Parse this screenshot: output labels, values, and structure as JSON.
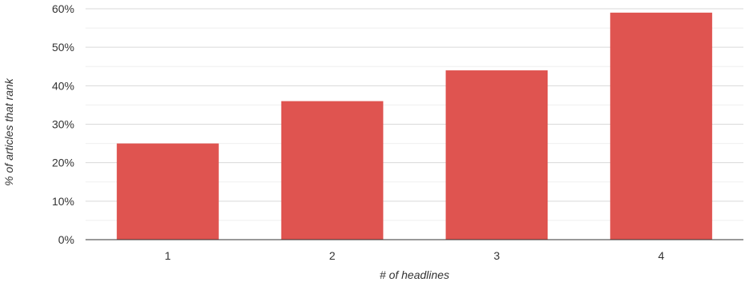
{
  "chart_data": {
    "type": "bar",
    "title": "",
    "xlabel": "# of headlines",
    "ylabel": "% of articles that rank",
    "categories": [
      "1",
      "2",
      "3",
      "4"
    ],
    "values": [
      25,
      36,
      44,
      59
    ],
    "value_format": "percent",
    "ylim": [
      0,
      60
    ],
    "yticks": [
      0,
      10,
      20,
      30,
      40,
      50,
      60
    ],
    "ytick_labels": [
      "0%",
      "10%",
      "20%",
      "30%",
      "40%",
      "50%",
      "60%"
    ],
    "grid": true,
    "minor_grid": true,
    "legend": "none",
    "bar_color": "#df5450"
  }
}
